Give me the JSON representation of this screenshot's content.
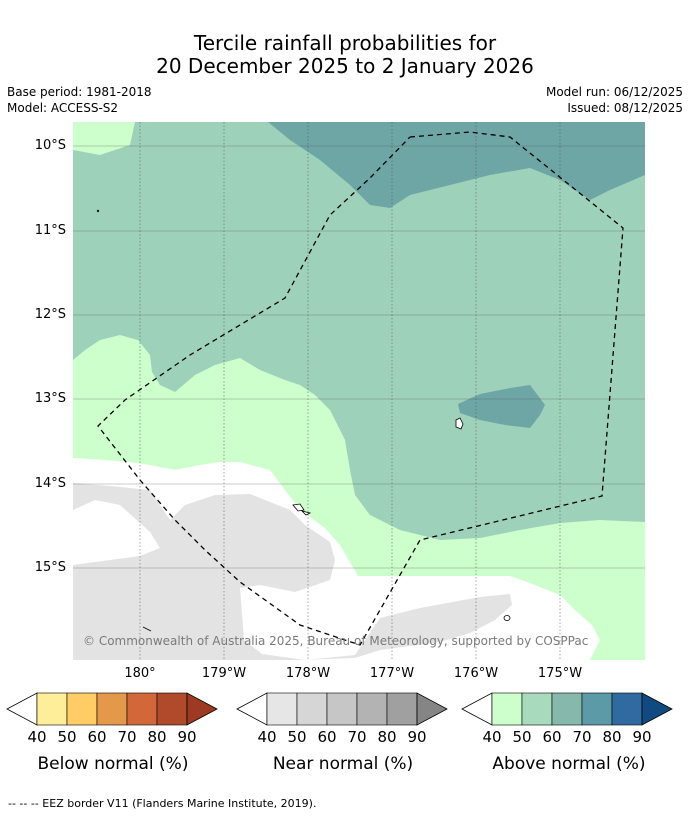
{
  "header": {
    "title_line1": "Tercile rainfall probabilities for",
    "title_line2": "20 December 2025 to 2 January 2026",
    "base_period": "Base period: 1981-2018",
    "model": "Model: ACCESS-S2",
    "model_run": "Model run: 06/12/2025",
    "issued": "Issued: 08/12/2025"
  },
  "map": {
    "lat_labels": [
      "10°S",
      "11°S",
      "12°S",
      "13°S",
      "14°S",
      "15°S"
    ],
    "lon_labels": [
      "180°",
      "179°W",
      "178°W",
      "177°W",
      "176°W",
      "175°W"
    ],
    "copyright": "© Commonwealth of Australia 2025, Bureau of Meteorology, supported by COSPPac",
    "colors": {
      "above_40": "#ccffcc",
      "above_50": "#9ed1b9",
      "above_60": "#6ea6a6",
      "near_40": "#e3e3e3",
      "none": "#ffffff"
    }
  },
  "legends": [
    {
      "title": "Below normal (%)",
      "ticks": [
        "40",
        "50",
        "60",
        "70",
        "80",
        "90"
      ],
      "colors": [
        "#ffee99",
        "#ffcc66",
        "#e3984a",
        "#d2683a",
        "#b04a2a",
        "#9e3a22"
      ]
    },
    {
      "title": "Near normal (%)",
      "ticks": [
        "40",
        "50",
        "60",
        "70",
        "80",
        "90"
      ],
      "colors": [
        "#e6e6e6",
        "#d6d6d6",
        "#c6c6c6",
        "#b3b3b3",
        "#a0a0a0",
        "#858585"
      ]
    },
    {
      "title": "Above normal (%)",
      "ticks": [
        "40",
        "50",
        "60",
        "70",
        "80",
        "90"
      ],
      "colors": [
        "#ccffcc",
        "#a8dbbe",
        "#86b9ac",
        "#5b9aa6",
        "#316aa0",
        "#104a80"
      ]
    }
  ],
  "footnote": "--  --  -- EEZ border V11 (Flanders Marine Institute, 2019)."
}
